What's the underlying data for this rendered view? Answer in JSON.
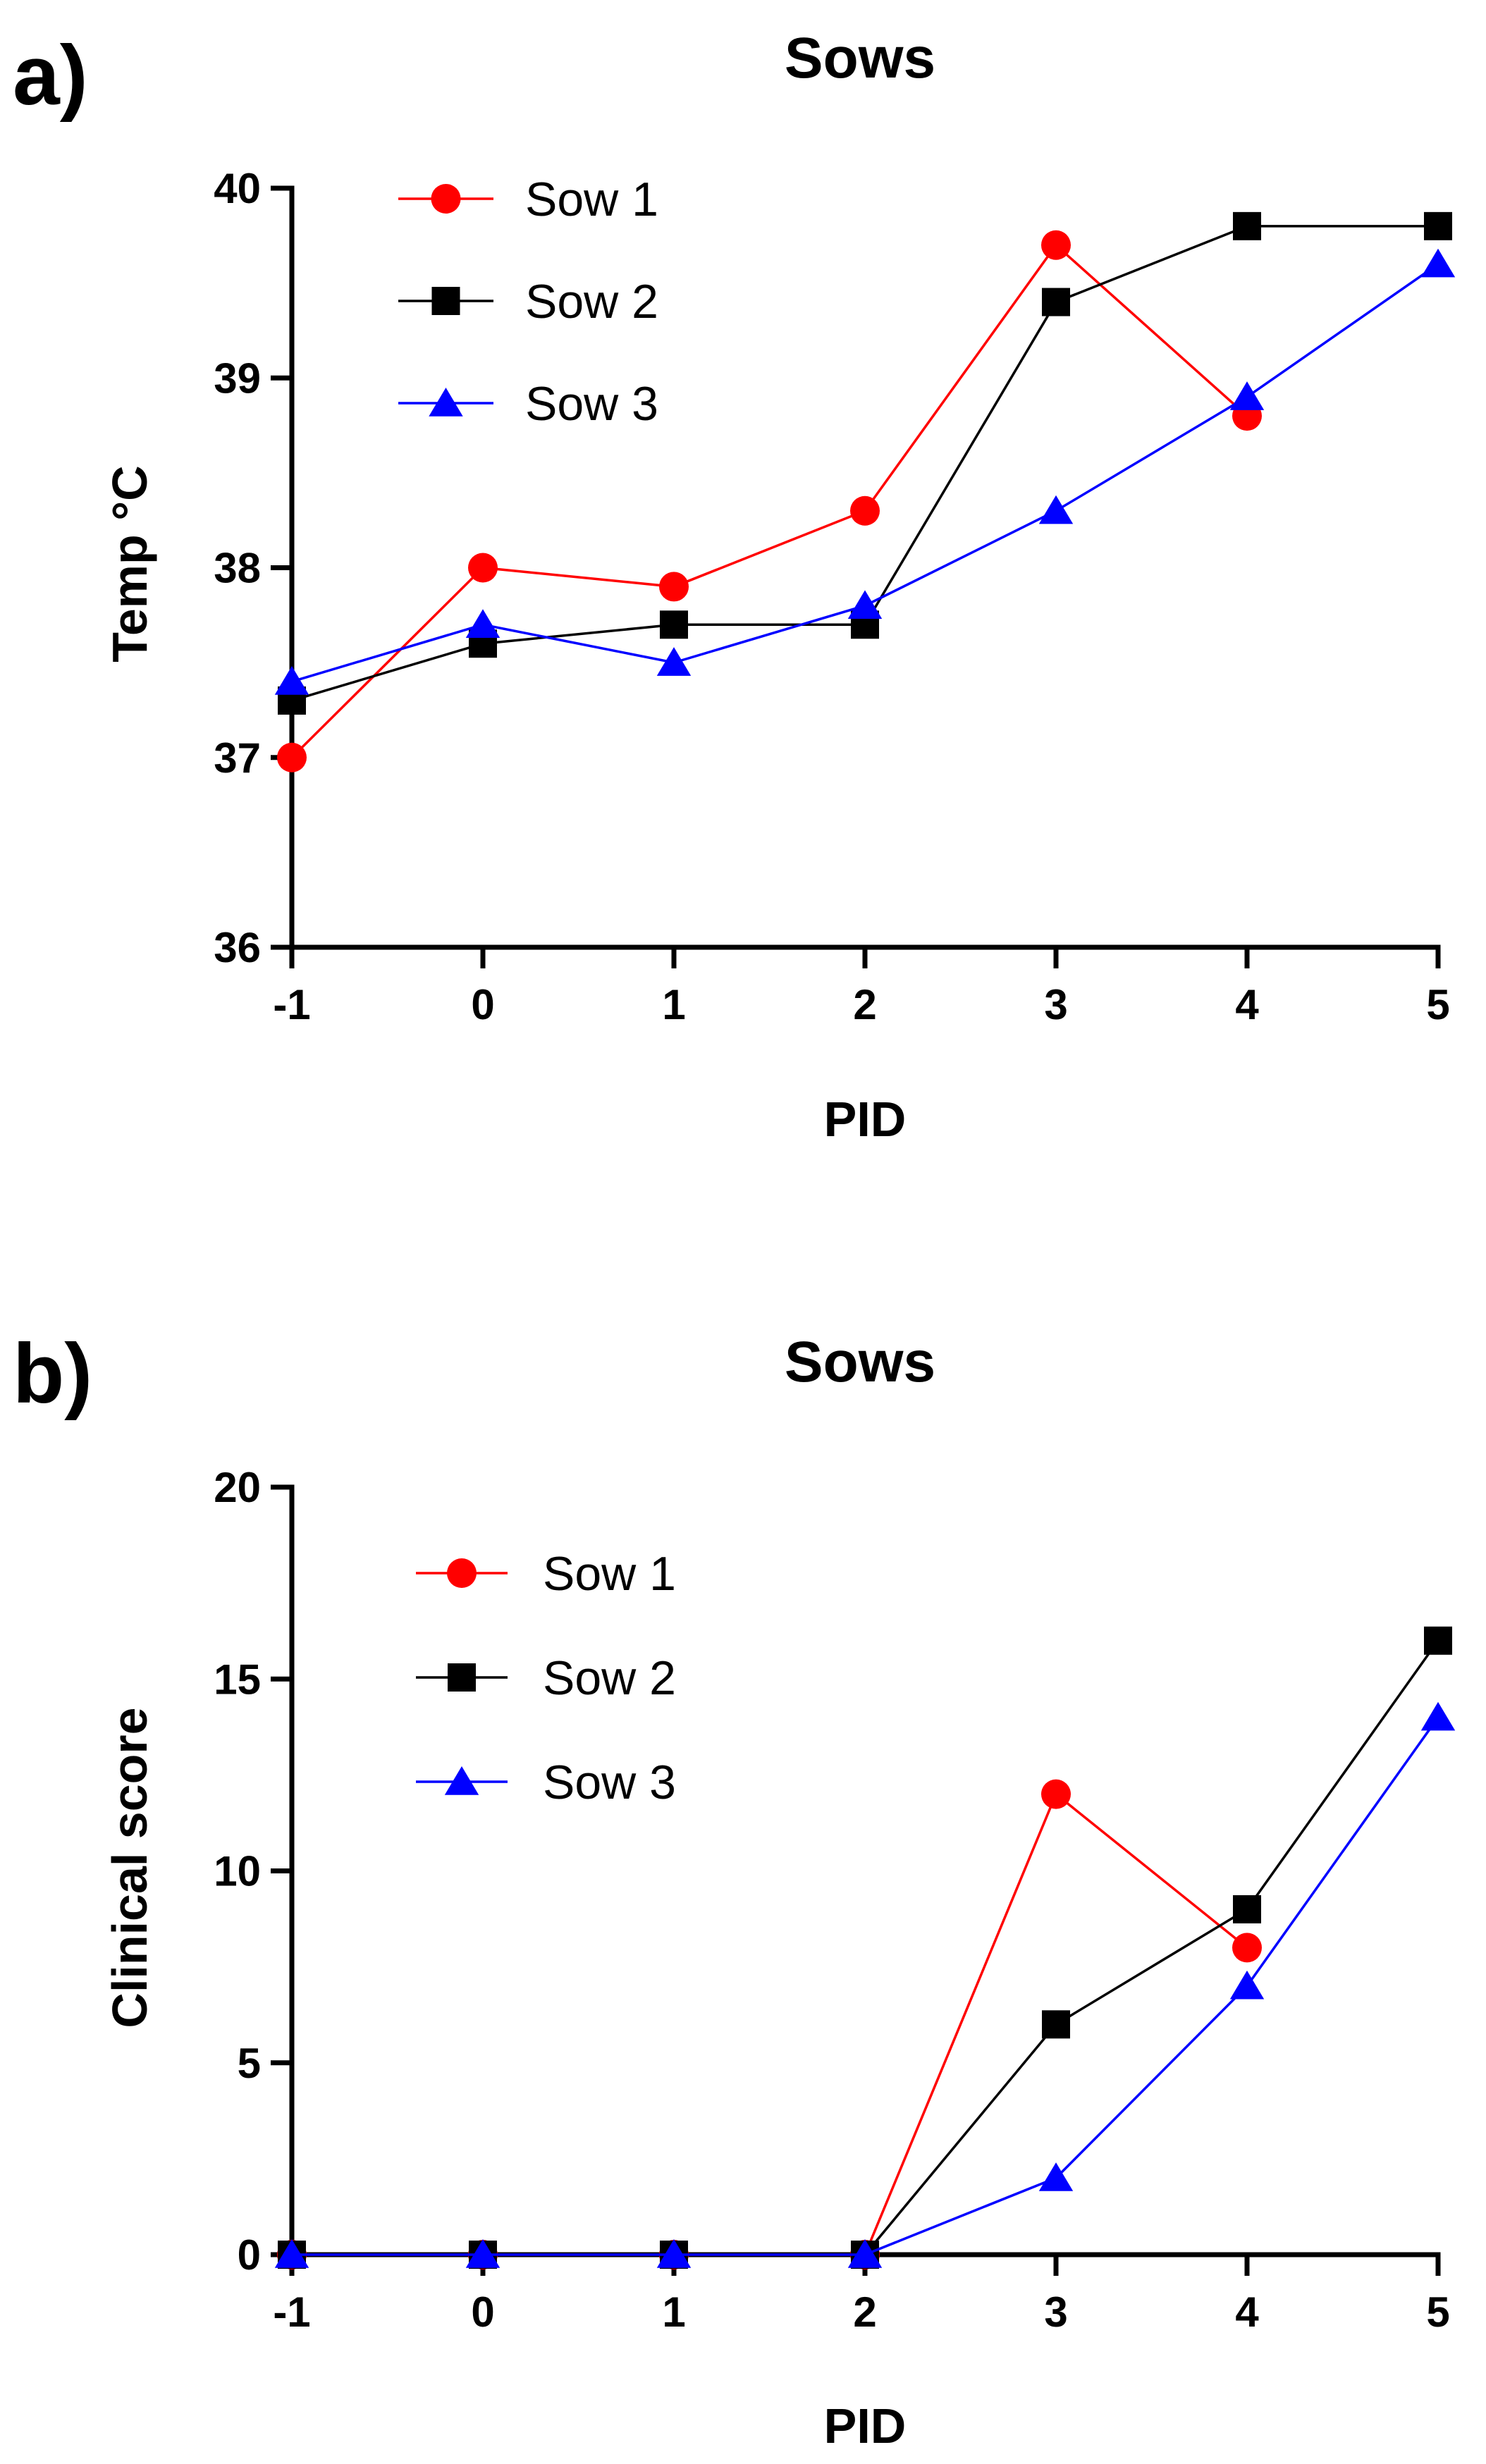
{
  "chart_data": [
    {
      "type": "line",
      "panel_label": "a)",
      "title": "Sows",
      "xlabel": "PID",
      "ylabel": "Temp °C",
      "x": [
        -1,
        0,
        1,
        2,
        3,
        4,
        5
      ],
      "x_tick_labels": [
        "-1",
        "0",
        "1",
        "2",
        "3",
        "4",
        "5"
      ],
      "ylim": [
        36,
        40
      ],
      "y_ticks": [
        36,
        37,
        38,
        39,
        40
      ],
      "y_tick_labels": [
        "36",
        "37",
        "38",
        "39",
        "40"
      ],
      "grid": false,
      "legend_position": "top-left",
      "series": [
        {
          "name": "Sow 1",
          "color": "#ff0000",
          "marker": "circle",
          "values": [
            37.0,
            38.0,
            37.9,
            38.3,
            39.7,
            38.8,
            null
          ]
        },
        {
          "name": "Sow 2",
          "color": "#000000",
          "marker": "square",
          "values": [
            37.3,
            37.6,
            37.7,
            37.7,
            39.4,
            39.8,
            39.8
          ]
        },
        {
          "name": "Sow 3",
          "color": "#0000ff",
          "marker": "triangle",
          "values": [
            37.4,
            37.7,
            37.5,
            37.8,
            38.3,
            38.9,
            39.6
          ]
        }
      ]
    },
    {
      "type": "line",
      "panel_label": "b)",
      "title": "Sows",
      "xlabel": "PID",
      "ylabel": "Clinical score",
      "x": [
        -1,
        0,
        1,
        2,
        3,
        4,
        5
      ],
      "x_tick_labels": [
        "-1",
        "0",
        "1",
        "2",
        "3",
        "4",
        "5"
      ],
      "ylim": [
        0,
        20
      ],
      "y_ticks": [
        0,
        5,
        10,
        15,
        20
      ],
      "y_tick_labels": [
        "0",
        "5",
        "10",
        "15",
        "20"
      ],
      "grid": false,
      "legend_position": "top-left",
      "series": [
        {
          "name": "Sow 1",
          "color": "#ff0000",
          "marker": "circle",
          "values": [
            0,
            0,
            0,
            0,
            12,
            8,
            null
          ]
        },
        {
          "name": "Sow 2",
          "color": "#000000",
          "marker": "square",
          "values": [
            0,
            0,
            0,
            0,
            6,
            9,
            16
          ]
        },
        {
          "name": "Sow 3",
          "color": "#0000ff",
          "marker": "triangle",
          "values": [
            0,
            0,
            0,
            0,
            2,
            7,
            14
          ]
        }
      ]
    }
  ]
}
